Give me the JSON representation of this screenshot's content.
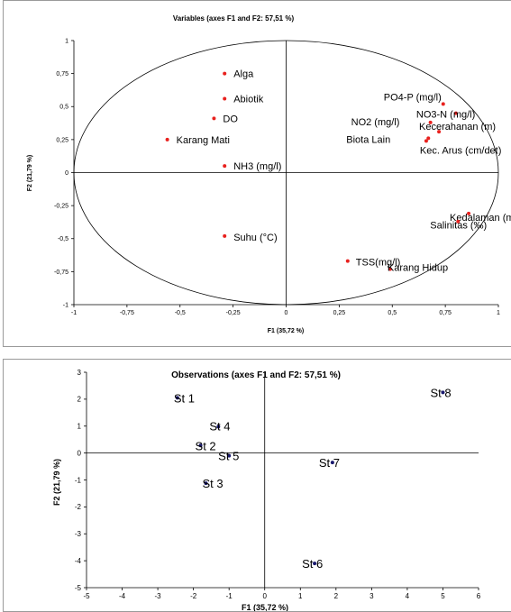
{
  "chart_data": [
    {
      "type": "scatter",
      "title": "Variables (axes F1 and F2: 57,51 %)",
      "xlabel": "F1 (35,72 %)",
      "ylabel": "F2 (21,79 %)",
      "xlim": [
        -1,
        1
      ],
      "ylim": [
        -1,
        1
      ],
      "x_ticks": [
        "-1",
        "-0,75",
        "-0,5",
        "-0,25",
        "0",
        "0,25",
        "0,5",
        "0,75",
        "1"
      ],
      "y_ticks": [
        "1",
        "0,75",
        "0,5",
        "0,25",
        "0",
        "-0,25",
        "-0,5",
        "-0,75",
        "-1"
      ],
      "x_tick_values": [
        -1,
        -0.75,
        -0.5,
        -0.25,
        0,
        0.25,
        0.5,
        0.75,
        1
      ],
      "y_tick_values": [
        1,
        0.75,
        0.5,
        0.25,
        0,
        -0.25,
        -0.5,
        -0.75,
        -1
      ],
      "circle": true,
      "point_color": "#e8211e",
      "points": [
        {
          "label": "Alga",
          "x": -0.29,
          "y": 0.75
        },
        {
          "label": "Abiotik",
          "x": -0.29,
          "y": 0.56
        },
        {
          "label": "DO",
          "x": -0.34,
          "y": 0.41
        },
        {
          "label": "Karang Mati",
          "x": -0.56,
          "y": 0.25
        },
        {
          "label": "NH3 (mg/l)",
          "x": -0.29,
          "y": 0.05
        },
        {
          "label": "PO4-P (mg/l)",
          "x": 0.74,
          "y": 0.52
        },
        {
          "label": "NO3-N (mg/l)",
          "x": 0.8,
          "y": 0.45
        },
        {
          "label": "NO2 (mg/l)",
          "x": 0.68,
          "y": 0.38
        },
        {
          "label": "Kecerahanan (m)",
          "x": 0.72,
          "y": 0.31
        },
        {
          "label": "Biota Lain",
          "x": 0.67,
          "y": 0.26
        },
        {
          "label": "Kec. Arus (cm/det)",
          "x": 0.66,
          "y": 0.24
        },
        {
          "label": "Kedalaman (m)",
          "x": 0.86,
          "y": -0.31
        },
        {
          "label": "Salinitas (‰)",
          "x": 0.81,
          "y": -0.37
        },
        {
          "label": "Suhu (°C)",
          "x": -0.29,
          "y": -0.48
        },
        {
          "label": "TSS(mg/l)",
          "x": 0.29,
          "y": -0.67
        },
        {
          "label": "Karang Hidup",
          "x": 0.49,
          "y": -0.73
        }
      ]
    },
    {
      "type": "scatter",
      "title": "Observations (axes F1 and F2: 57,51 %)",
      "xlabel": "F1 (35,72 %)",
      "ylabel": "F2 (21,79 %)",
      "xlim": [
        -5,
        6
      ],
      "ylim": [
        -5,
        3
      ],
      "x_ticks": [
        "-5",
        "-4",
        "-3",
        "-2",
        "-1",
        "0",
        "1",
        "2",
        "3",
        "4",
        "5",
        "6"
      ],
      "y_ticks": [
        "3",
        "2",
        "1",
        "0",
        "-1",
        "-2",
        "-3",
        "-4",
        "-5"
      ],
      "x_tick_values": [
        -5,
        -4,
        -3,
        -2,
        -1,
        0,
        1,
        2,
        3,
        4,
        5,
        6
      ],
      "y_tick_values": [
        3,
        2,
        1,
        0,
        -1,
        -2,
        -3,
        -4,
        -5
      ],
      "point_color": "#1a1a6e",
      "points": [
        {
          "label": "St 1",
          "x": -2.45,
          "y": 2.05
        },
        {
          "label": "St 2",
          "x": -1.8,
          "y": 0.28
        },
        {
          "label": "St 3",
          "x": -1.65,
          "y": -1.12
        },
        {
          "label": "St 4",
          "x": -1.3,
          "y": 0.98
        },
        {
          "label": "St 5",
          "x": -1.0,
          "y": -0.1
        },
        {
          "label": "St 6",
          "x": 1.4,
          "y": -4.1
        },
        {
          "label": "St 7",
          "x": 1.9,
          "y": -0.35
        },
        {
          "label": "St 8",
          "x": 5.0,
          "y": 2.25
        }
      ]
    }
  ]
}
